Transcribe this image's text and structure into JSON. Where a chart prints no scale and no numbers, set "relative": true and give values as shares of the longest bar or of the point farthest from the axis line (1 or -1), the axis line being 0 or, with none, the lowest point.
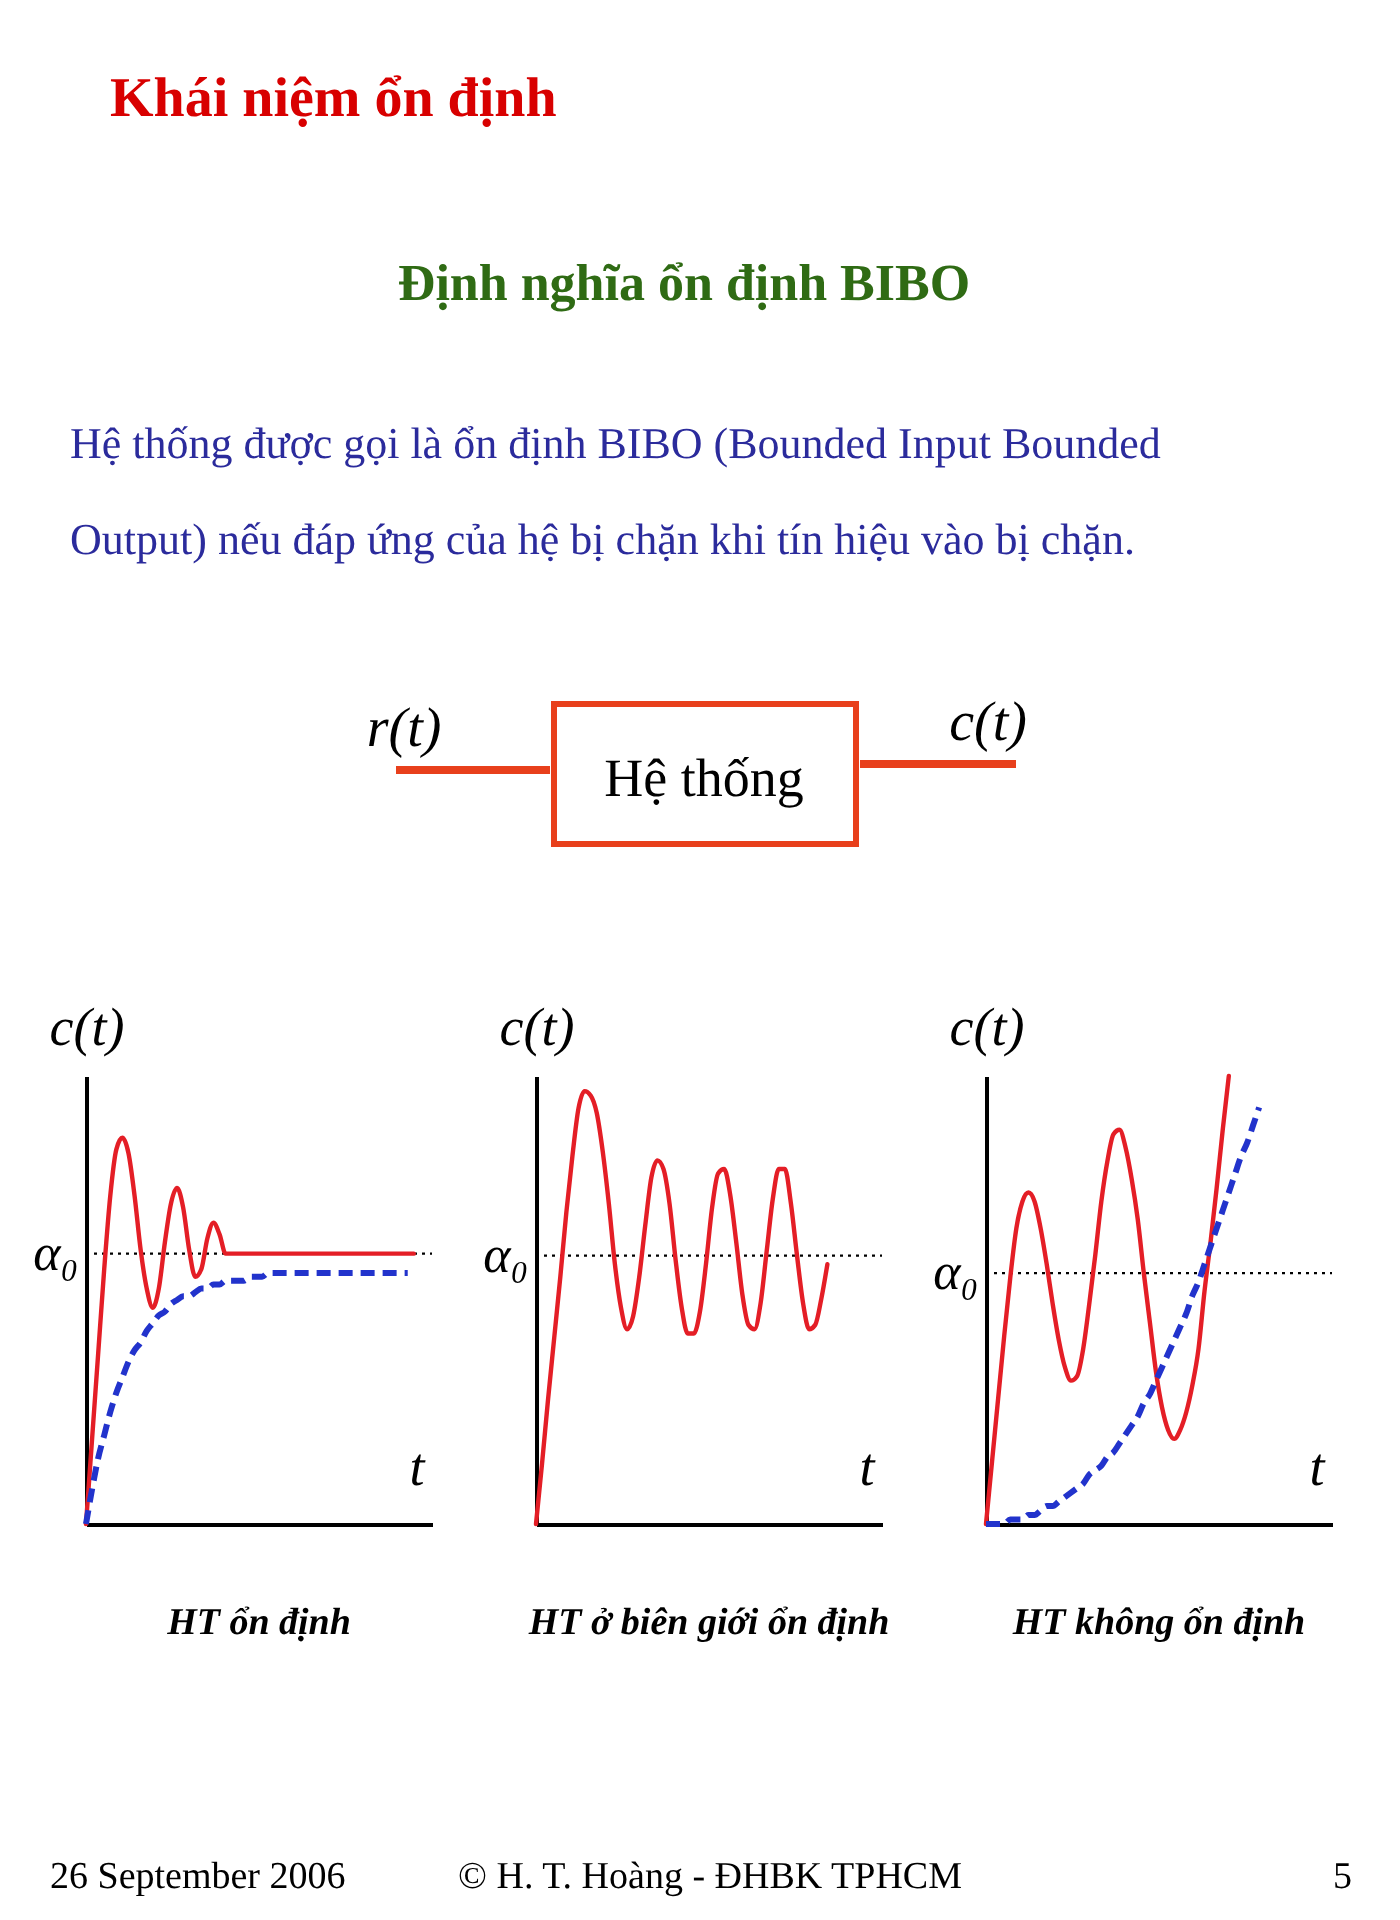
{
  "chart_data": [
    {
      "type": "other",
      "title": "Khái niệm ổn định",
      "subtitle": "Định nghĩa ổn định BIBO",
      "annotations": [
        "Hệ thống được gọi là ổn định BIBO (Bounded Input Bounded Output) nếu đáp ứng của hệ bị chặn khi tín hiệu vào bị chặn.",
        "r(t)",
        "Hệ thống",
        "c(t)"
      ]
    },
    {
      "type": "line",
      "title": "HT ổn định",
      "xlabel": "t",
      "ylabel": "c(t)",
      "relative": true,
      "categories": [
        null,
        null,
        null,
        null,
        null,
        null,
        null,
        null,
        null,
        null,
        null,
        null,
        null,
        null,
        null,
        null,
        null,
        null,
        null,
        null,
        null,
        null,
        null,
        null,
        null,
        null,
        null,
        null,
        null,
        null,
        null,
        null,
        null,
        null,
        null,
        null,
        null,
        null,
        null,
        null,
        null,
        null,
        null,
        null,
        null,
        null,
        null,
        null,
        null,
        null,
        null,
        null,
        null,
        null,
        null,
        null,
        null,
        null
      ],
      "series": [
        {
          "color": "#e41e26",
          "line_style": "solid",
          "values": [
            0,
            0.22,
            0.44,
            0.66,
            0.85,
            0.97,
            1,
            0.96,
            0.85,
            0.71,
            0.61,
            0.56,
            0.61,
            0.73,
            0.83,
            0.87,
            0.82,
            0.71,
            0.64,
            0.66,
            0.74,
            0.78,
            0.75,
            0.7,
            0.7,
            0.7,
            0.7,
            0.7,
            0.7,
            0.7,
            0.7,
            0.7,
            0.7,
            0.7,
            0.7,
            0.7,
            0.7,
            0.7,
            0.7,
            0.7,
            0.7,
            0.7,
            0.7,
            0.7,
            0.7,
            0.7,
            0.7,
            0.7,
            0.7,
            0.7,
            0.7,
            0.7,
            0.7,
            0.7,
            0.7,
            null,
            null,
            null
          ]
        },
        {
          "color": "#2233cc",
          "line_style": "dashed",
          "values": [
            0,
            0.09,
            0.17,
            0.23,
            0.29,
            0.34,
            0.38,
            0.42,
            0.45,
            0.47,
            0.5,
            0.52,
            0.54,
            0.55,
            0.57,
            0.58,
            0.59,
            0.59,
            0.6,
            0.61,
            0.61,
            0.62,
            0.62,
            0.63,
            0.63,
            0.63,
            0.63,
            0.64,
            0.64,
            0.64,
            0.65,
            0.65,
            0.65,
            0.65,
            0.65,
            0.65,
            0.65,
            0.65,
            0.65,
            0.65,
            0.65,
            0.65,
            0.65,
            0.65,
            0.65,
            0.65,
            0.65,
            0.65,
            0.65,
            0.65,
            0.65,
            0.65,
            0.65,
            0.65,
            null,
            null,
            null,
            null
          ]
        }
      ],
      "ref_lines": [
        {
          "axis": "y",
          "value": 0.7,
          "label": "α₀",
          "line_style": "dotted",
          "color": "#000000"
        }
      ]
    },
    {
      "type": "line",
      "title": "HT ở biên giới ổn định",
      "xlabel": "t",
      "ylabel": "c(t)",
      "relative": true,
      "categories": [
        null,
        null,
        null,
        null,
        null,
        null,
        null,
        null,
        null,
        null,
        null,
        null,
        null,
        null,
        null,
        null,
        null,
        null,
        null,
        null,
        null,
        null,
        null,
        null,
        null,
        null,
        null,
        null,
        null,
        null,
        null,
        null,
        null,
        null,
        null,
        null,
        null,
        null,
        null,
        null,
        null,
        null,
        null,
        null,
        null,
        null,
        null,
        null,
        null,
        null,
        null,
        null,
        null,
        null,
        null,
        null,
        null,
        null
      ],
      "series": [
        {
          "color": "#e41e26",
          "line_style": "solid",
          "values": [
            0,
            0.14,
            0.29,
            0.43,
            0.57,
            0.72,
            0.85,
            0.96,
            1,
            0.99,
            0.95,
            0.86,
            0.74,
            0.6,
            0.5,
            0.45,
            0.48,
            0.57,
            0.69,
            0.8,
            0.84,
            0.82,
            0.74,
            0.61,
            0.5,
            0.44,
            0.44,
            0.49,
            0.6,
            0.73,
            0.81,
            0.82,
            0.76,
            0.65,
            0.53,
            0.46,
            0.45,
            0.51,
            0.63,
            0.75,
            0.82,
            0.82,
            0.74,
            0.62,
            0.51,
            0.45,
            0.46,
            0.52,
            0.6,
            null,
            null,
            null,
            null,
            null,
            null,
            null,
            null,
            null
          ]
        }
      ],
      "ref_lines": [
        {
          "axis": "y",
          "value": 0.62,
          "label": "α₀",
          "line_style": "dotted",
          "color": "#000000"
        }
      ]
    },
    {
      "type": "line",
      "title": "HT không ổn định",
      "xlabel": "t",
      "ylabel": "c(t)",
      "relative": true,
      "categories": [
        null,
        null,
        null,
        null,
        null,
        null,
        null,
        null,
        null,
        null,
        null,
        null,
        null,
        null,
        null,
        null,
        null,
        null,
        null,
        null,
        null,
        null,
        null,
        null,
        null,
        null,
        null,
        null,
        null,
        null,
        null,
        null,
        null,
        null,
        null,
        null,
        null,
        null,
        null,
        null,
        null,
        null,
        null,
        null,
        null,
        null,
        null,
        null,
        null,
        null,
        null,
        null,
        null,
        null,
        null,
        null,
        null,
        null
      ],
      "series": [
        {
          "color": "#e41e26",
          "line_style": "solid",
          "values": [
            0,
            0.14,
            0.28,
            0.42,
            0.55,
            0.66,
            0.72,
            0.74,
            0.72,
            0.66,
            0.58,
            0.49,
            0.41,
            0.35,
            0.32,
            0.33,
            0.39,
            0.49,
            0.6,
            0.72,
            0.81,
            0.87,
            0.88,
            0.84,
            0.77,
            0.68,
            0.56,
            0.45,
            0.34,
            0.26,
            0.21,
            0.19,
            0.21,
            0.25,
            0.31,
            0.39,
            0.52,
            0.63,
            0.75,
            0.88,
            1,
            null,
            null,
            null,
            null,
            null,
            null,
            null,
            null,
            null,
            null,
            null,
            null,
            null,
            null,
            null,
            null,
            null
          ]
        },
        {
          "color": "#2233cc",
          "line_style": "dashed",
          "values": [
            0,
            0,
            0,
            0,
            0.01,
            0.01,
            0.01,
            0.02,
            0.02,
            0.03,
            0.04,
            0.04,
            0.05,
            0.06,
            0.07,
            0.08,
            0.09,
            0.11,
            0.12,
            0.13,
            0.15,
            0.16,
            0.18,
            0.2,
            0.22,
            0.24,
            0.27,
            0.29,
            0.32,
            0.35,
            0.38,
            0.41,
            0.44,
            0.47,
            0.51,
            0.54,
            0.58,
            0.62,
            0.66,
            0.7,
            0.74,
            0.78,
            0.82,
            0.85,
            0.89,
            0.93,
            null,
            null,
            null,
            null,
            null,
            null,
            null,
            null,
            null,
            null,
            null,
            null
          ]
        }
      ],
      "ref_lines": [
        {
          "axis": "y",
          "value": 0.56,
          "label": "α₀",
          "line_style": "dotted",
          "color": "#000000"
        }
      ]
    },
    {
      "type": "other",
      "annotations": [
        "26 September 2006",
        "© H. T. Hoàng - ĐHBK TPHCM",
        "5"
      ]
    }
  ]
}
